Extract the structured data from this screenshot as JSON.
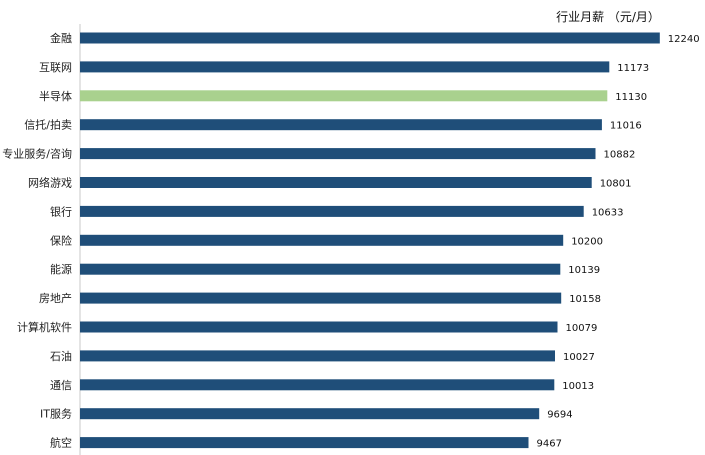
{
  "chart_data": {
    "type": "bar",
    "orientation": "horizontal",
    "title": "行业月薪 （元/月）",
    "categories": [
      "金融",
      "互联网",
      "半导体",
      "信托/拍卖",
      "专业服务/咨询",
      "网络游戏",
      "银行",
      "保险",
      "能源",
      "房地产",
      "计算机软件",
      "石油",
      "通信",
      "IT服务",
      "航空"
    ],
    "values": [
      12240,
      11173,
      11130,
      11016,
      10882,
      10801,
      10633,
      10200,
      10139,
      10158,
      10079,
      10027,
      10013,
      9694,
      9467
    ],
    "highlight": "半导体",
    "colors": {
      "bar": "#1f4e79",
      "highlight": "#a9d18e",
      "axis": "#c8c8c8"
    },
    "xlim": [
      0,
      13130
    ],
    "grid": false,
    "legend": "none"
  }
}
